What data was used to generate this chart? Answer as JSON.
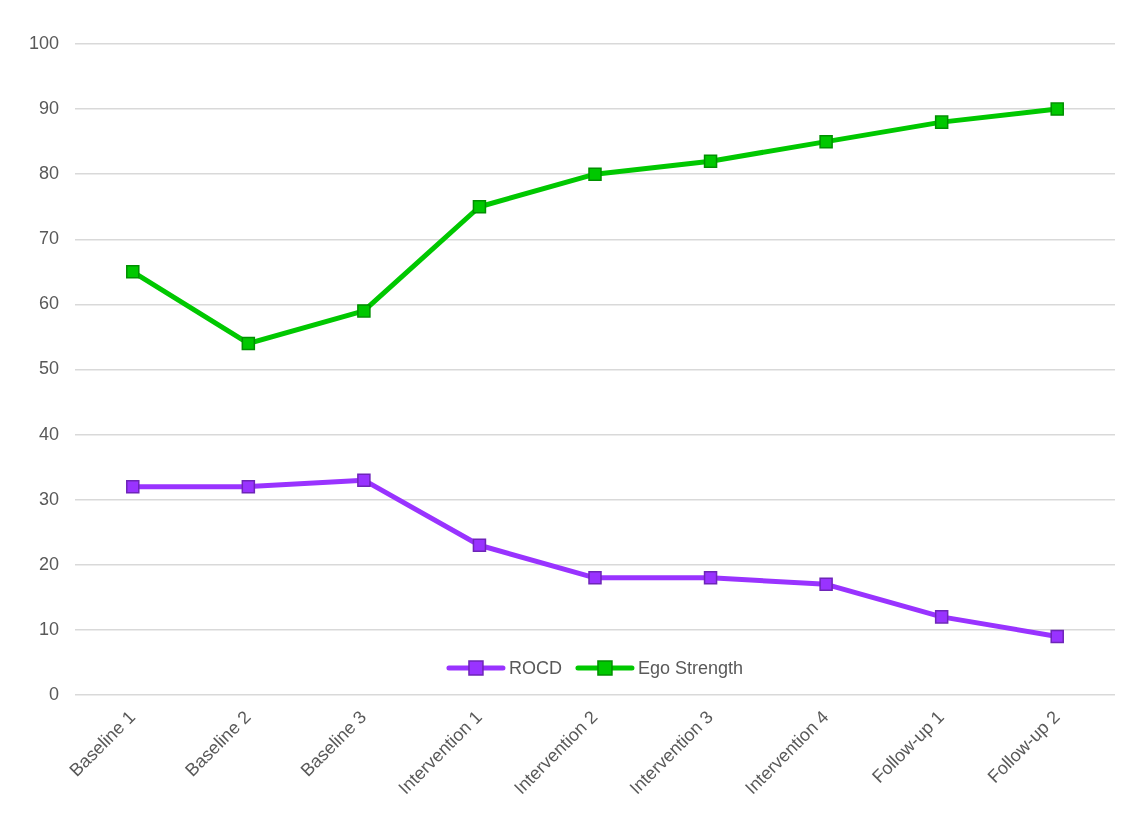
{
  "chart_data": {
    "type": "line",
    "categories": [
      "Baseline 1",
      "Baseline 2",
      "Baseline 3",
      "Intervention 1",
      "Intervention 2",
      "Intervention 3",
      "Intervention 4",
      "Follow-up 1",
      "Follow-up 2"
    ],
    "series": [
      {
        "name": "ROCD",
        "color": "#9933ff",
        "values": [
          32,
          32,
          33,
          23,
          18,
          18,
          17,
          12,
          9
        ]
      },
      {
        "name": "Ego Strength",
        "color": "#00c800",
        "values": [
          65,
          54,
          59,
          75,
          80,
          82,
          85,
          88,
          90
        ]
      }
    ],
    "ylim": [
      0,
      100
    ],
    "yticks": [
      0,
      10,
      20,
      30,
      40,
      50,
      60,
      70,
      80,
      90,
      100
    ],
    "grid": "y",
    "legend": "bottom",
    "marker": "square"
  }
}
